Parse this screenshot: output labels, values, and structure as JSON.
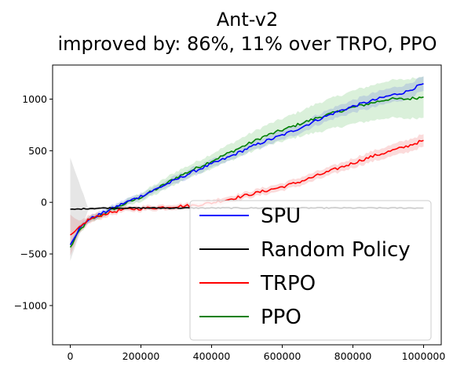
{
  "chart_data": {
    "type": "line",
    "title": "Ant-v2",
    "subtitle": "improved by: 86%, 11% over TRPO, PPO",
    "xlabel": "",
    "ylabel": "",
    "xlim": [
      -50000,
      1050000
    ],
    "ylim": [
      -1380,
      1330
    ],
    "x_ticks": [
      0,
      200000,
      400000,
      600000,
      800000,
      1000000
    ],
    "x_tick_labels": [
      "0",
      "200000",
      "400000",
      "600000",
      "800000",
      "1000000"
    ],
    "y_ticks": [
      -1000,
      -500,
      0,
      500,
      1000
    ],
    "y_tick_labels": [
      "−1000",
      "−500",
      "0",
      "500",
      "1000"
    ],
    "legend_position": "lower-right",
    "series": [
      {
        "name": "SPU",
        "color": "#0000ff",
        "band_color": "#6f7fe0",
        "x": [
          0,
          25000,
          50000,
          100000,
          150000,
          200000,
          250000,
          300000,
          350000,
          400000,
          450000,
          500000,
          550000,
          600000,
          650000,
          700000,
          750000,
          800000,
          850000,
          900000,
          950000,
          1000000
        ],
        "values": [
          -400,
          -260,
          -170,
          -90,
          -10,
          60,
          140,
          220,
          300,
          370,
          440,
          520,
          590,
          650,
          720,
          800,
          870,
          930,
          980,
          1030,
          1070,
          1150
        ],
        "band": [
          30,
          30,
          30,
          30,
          30,
          30,
          30,
          40,
          40,
          40,
          40,
          40,
          45,
          45,
          50,
          50,
          55,
          60,
          70,
          70,
          70,
          70
        ]
      },
      {
        "name": "Random Policy",
        "color": "#000000",
        "band_color": "#9a9a9a",
        "x": [
          0,
          50000,
          100000,
          150000,
          200000,
          250000,
          300000,
          350000,
          400000,
          450000,
          500000,
          550000,
          600000,
          650000,
          700000,
          750000,
          800000,
          850000,
          900000,
          950000,
          1000000
        ],
        "values": [
          -70,
          -60,
          -55,
          -55,
          -55,
          -55,
          -55,
          -55,
          -55,
          -55,
          -55,
          -55,
          -55,
          -55,
          -55,
          -55,
          -55,
          -55,
          -55,
          -55,
          -55
        ],
        "band": [
          500,
          15,
          12,
          12,
          12,
          12,
          12,
          12,
          12,
          12,
          12,
          12,
          12,
          12,
          12,
          12,
          12,
          12,
          12,
          12,
          12
        ]
      },
      {
        "name": "TRPO",
        "color": "#ff0000",
        "band_color": "#f07070",
        "x": [
          0,
          25000,
          50000,
          100000,
          150000,
          200000,
          250000,
          300000,
          350000,
          400000,
          450000,
          500000,
          550000,
          600000,
          650000,
          700000,
          750000,
          800000,
          850000,
          900000,
          950000,
          1000000
        ],
        "values": [
          -330,
          -250,
          -170,
          -110,
          -70,
          -60,
          -50,
          -40,
          -30,
          -5,
          30,
          70,
          110,
          150,
          200,
          260,
          320,
          380,
          440,
          490,
          540,
          600
        ],
        "band": [
          200,
          60,
          40,
          30,
          25,
          25,
          25,
          25,
          25,
          30,
          30,
          30,
          35,
          35,
          40,
          40,
          40,
          45,
          50,
          55,
          60,
          60
        ]
      },
      {
        "name": "PPO",
        "color": "#008000",
        "band_color": "#6cc36c",
        "x": [
          0,
          25000,
          50000,
          100000,
          150000,
          200000,
          250000,
          300000,
          350000,
          400000,
          450000,
          500000,
          550000,
          600000,
          650000,
          700000,
          750000,
          800000,
          850000,
          900000,
          950000,
          1000000
        ],
        "values": [
          -440,
          -280,
          -180,
          -100,
          -20,
          50,
          140,
          240,
          320,
          400,
          480,
          560,
          640,
          700,
          760,
          820,
          870,
          920,
          960,
          1000,
          1000,
          1020
        ],
        "band": [
          30,
          30,
          30,
          30,
          30,
          40,
          50,
          60,
          60,
          70,
          80,
          90,
          100,
          110,
          120,
          140,
          150,
          160,
          170,
          180,
          190,
          200
        ]
      }
    ]
  }
}
